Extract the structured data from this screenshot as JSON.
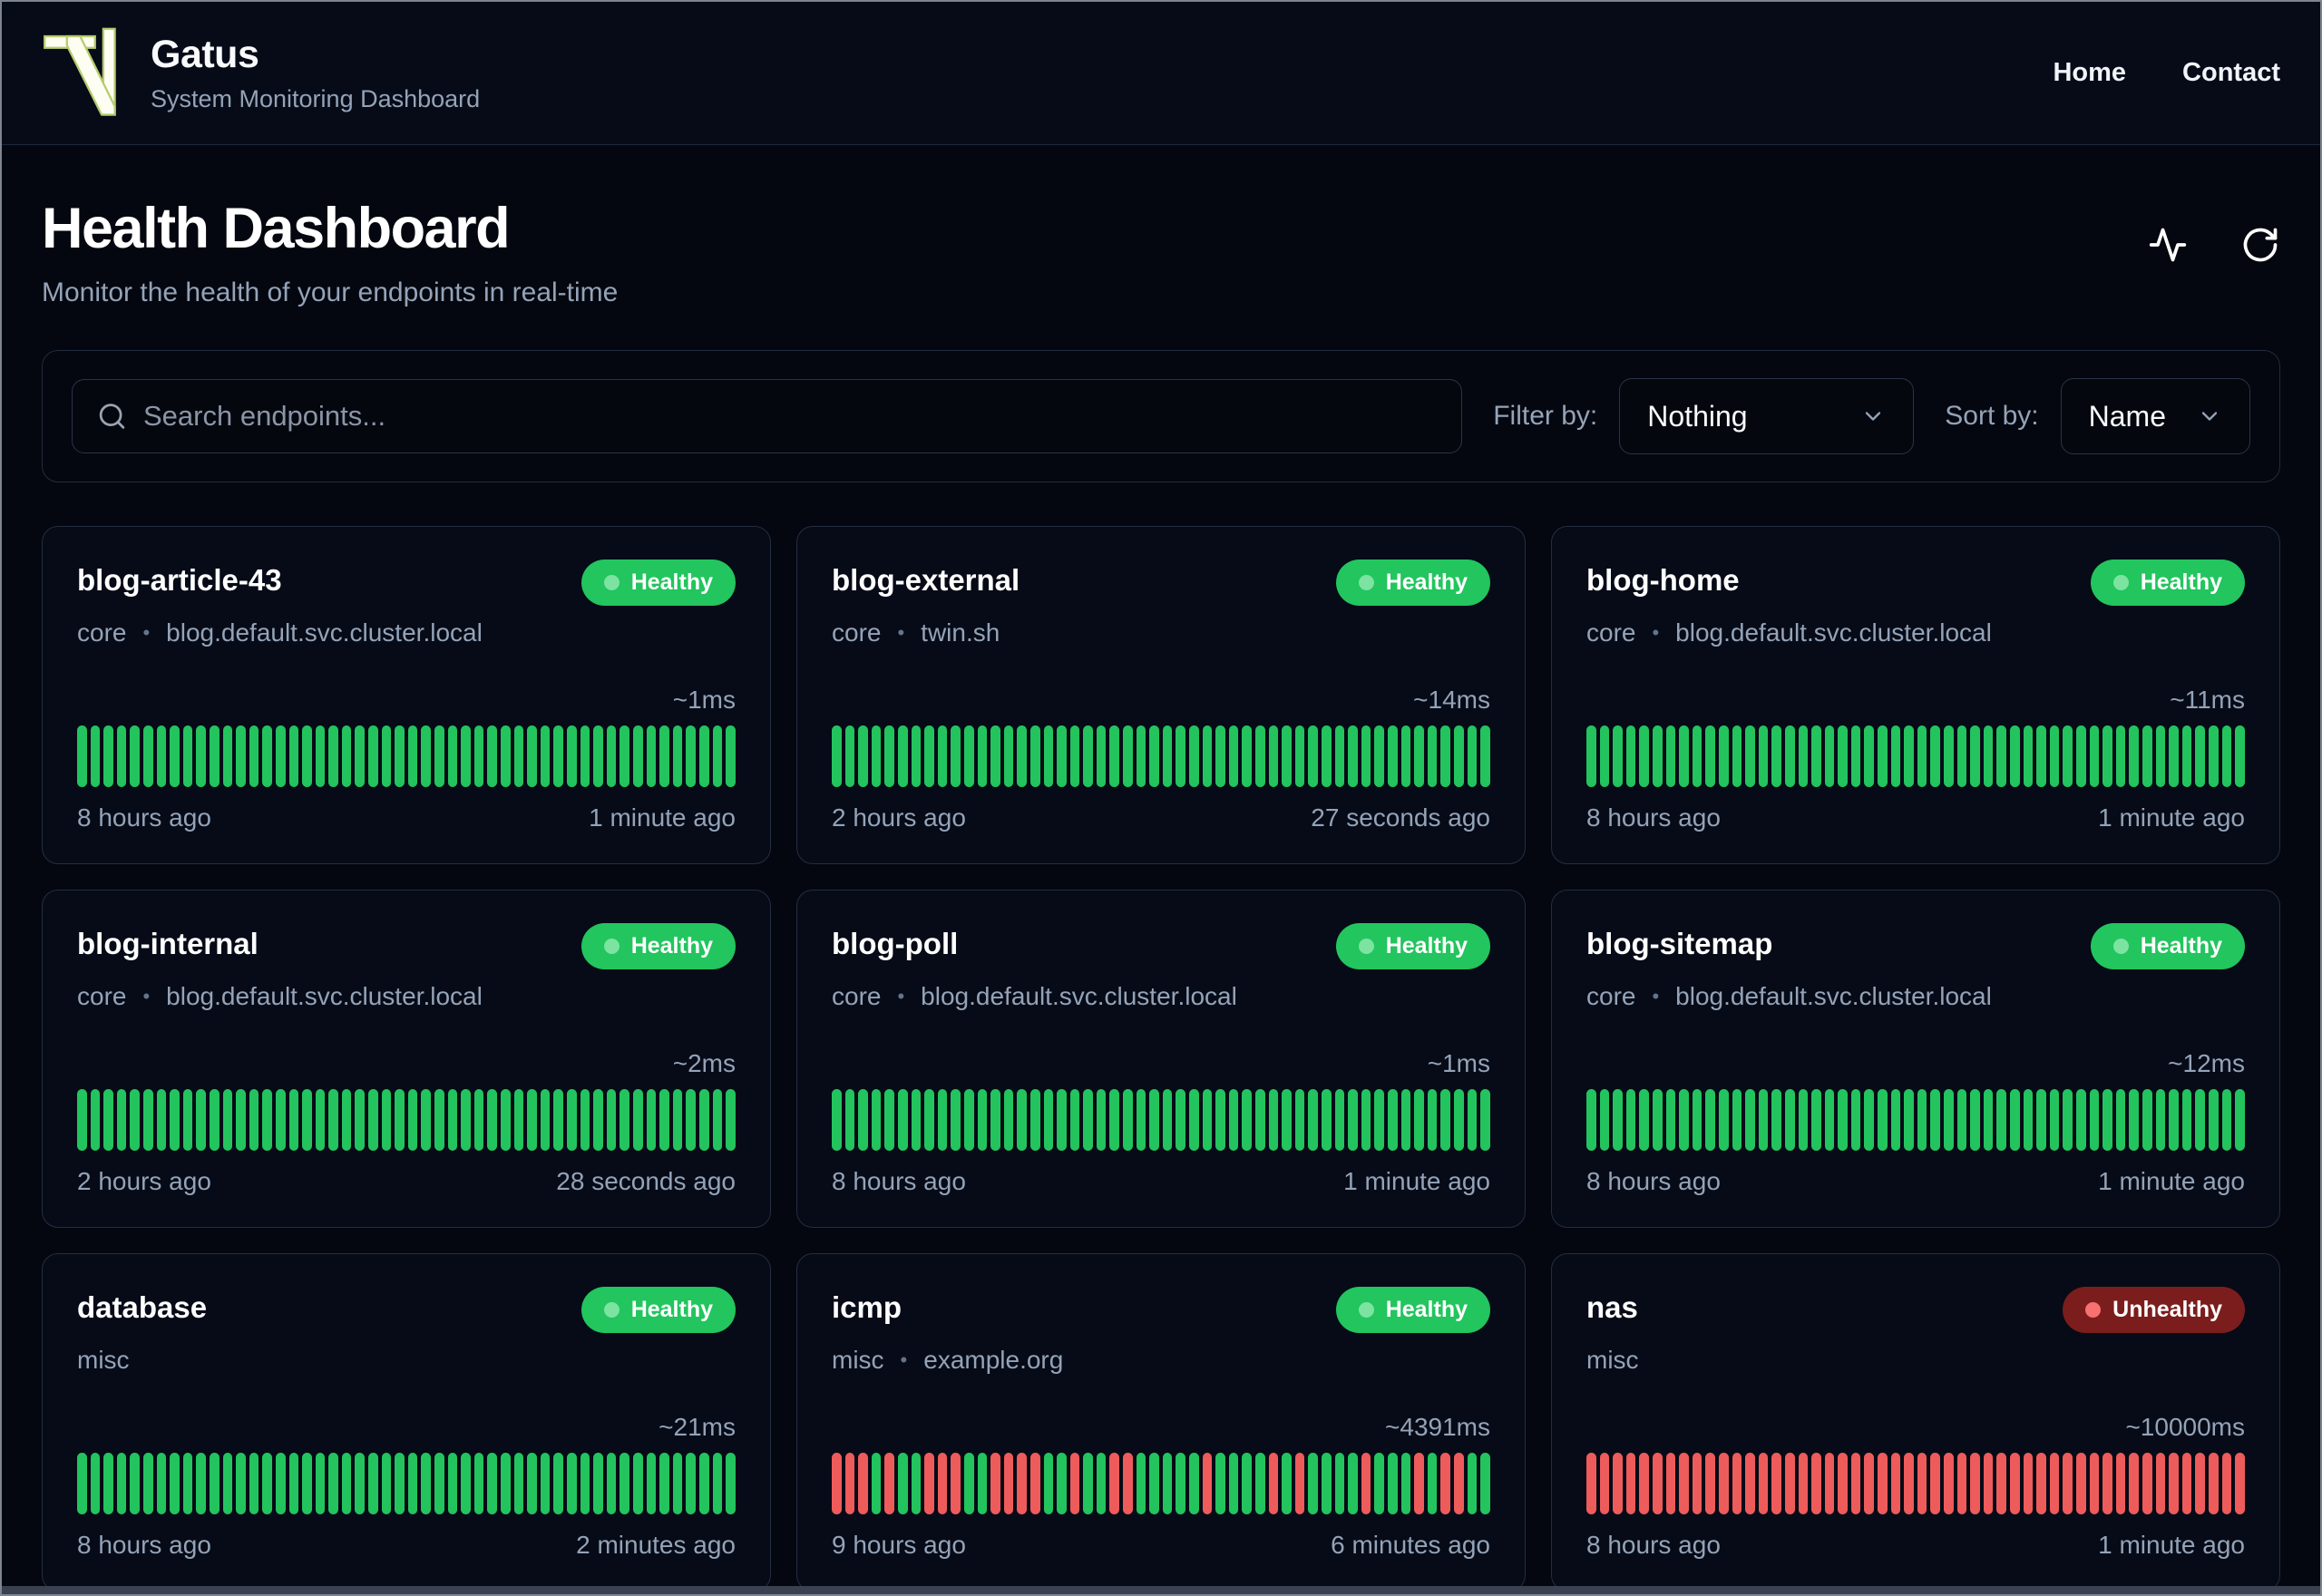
{
  "brand": {
    "name": "Gatus",
    "subtitle": "System Monitoring Dashboard"
  },
  "nav": {
    "home": "Home",
    "contact": "Contact"
  },
  "page": {
    "title": "Health Dashboard",
    "subtitle": "Monitor the health of your endpoints in real-time"
  },
  "toolbar": {
    "search_placeholder": "Search endpoints...",
    "filter_label": "Filter by:",
    "filter_value": "Nothing",
    "sort_label": "Sort by:",
    "sort_value": "Name"
  },
  "icons": {
    "logo": "tn-monogram",
    "header_left": "activity-pulse-icon",
    "header_right": "refresh-icon",
    "search": "search-icon",
    "select": "chevron-down-icon"
  },
  "colors": {
    "healthy_badge_bg": "#22c55e",
    "healthy_dot": "#7ce3a1",
    "unhealthy_badge_bg": "#7c1d1d",
    "unhealthy_dot": "#f87171",
    "bar_up": "#23c45e",
    "bar_down": "#ee5b5b",
    "logo_outline": "#b6cc6e"
  },
  "status_labels": {
    "healthy": "Healthy",
    "unhealthy": "Unhealthy"
  },
  "endpoints": [
    {
      "name": "blog-article-43",
      "group": "core",
      "host": "blog.default.svc.cluster.local",
      "status": "Healthy",
      "latency": "~1ms",
      "time_start": "8 hours ago",
      "time_end": "1 minute ago",
      "bars": "gggggggggggggggggggggggggggggggggggggggggggggggggg"
    },
    {
      "name": "blog-external",
      "group": "core",
      "host": "twin.sh",
      "status": "Healthy",
      "latency": "~14ms",
      "time_start": "2 hours ago",
      "time_end": "27 seconds ago",
      "bars": "gggggggggggggggggggggggggggggggggggggggggggggggggg"
    },
    {
      "name": "blog-home",
      "group": "core",
      "host": "blog.default.svc.cluster.local",
      "status": "Healthy",
      "latency": "~11ms",
      "time_start": "8 hours ago",
      "time_end": "1 minute ago",
      "bars": "gggggggggggggggggggggggggggggggggggggggggggggggggg"
    },
    {
      "name": "blog-internal",
      "group": "core",
      "host": "blog.default.svc.cluster.local",
      "status": "Healthy",
      "latency": "~2ms",
      "time_start": "2 hours ago",
      "time_end": "28 seconds ago",
      "bars": "gggggggggggggggggggggggggggggggggggggggggggggggggg"
    },
    {
      "name": "blog-poll",
      "group": "core",
      "host": "blog.default.svc.cluster.local",
      "status": "Healthy",
      "latency": "~1ms",
      "time_start": "8 hours ago",
      "time_end": "1 minute ago",
      "bars": "gggggggggggggggggggggggggggggggggggggggggggggggggg"
    },
    {
      "name": "blog-sitemap",
      "group": "core",
      "host": "blog.default.svc.cluster.local",
      "status": "Healthy",
      "latency": "~12ms",
      "time_start": "8 hours ago",
      "time_end": "1 minute ago",
      "bars": "gggggggggggggggggggggggggggggggggggggggggggggggggg"
    },
    {
      "name": "database",
      "group": "misc",
      "host": "",
      "status": "Healthy",
      "latency": "~21ms",
      "time_start": "8 hours ago",
      "time_end": "2 minutes ago",
      "bars": "gggggggggggggggggggggggggggggggggggggggggggggggggg"
    },
    {
      "name": "icmp",
      "group": "misc",
      "host": "example.org",
      "status": "Healthy",
      "latency": "~4391ms",
      "time_start": "9 hours ago",
      "time_end": "6 minutes ago",
      "bars": "rrrgrggrrrggrrrrggrggrrgggggrggggrgrggggrgggrgrrgg"
    },
    {
      "name": "nas",
      "group": "misc",
      "host": "",
      "status": "Unhealthy",
      "latency": "~10000ms",
      "time_start": "8 hours ago",
      "time_end": "1 minute ago",
      "bars": "rrrrrrrrrrrrrrrrrrrrrrrrrrrrrrrrrrrrrrrrrrrrrrrrrr"
    }
  ]
}
